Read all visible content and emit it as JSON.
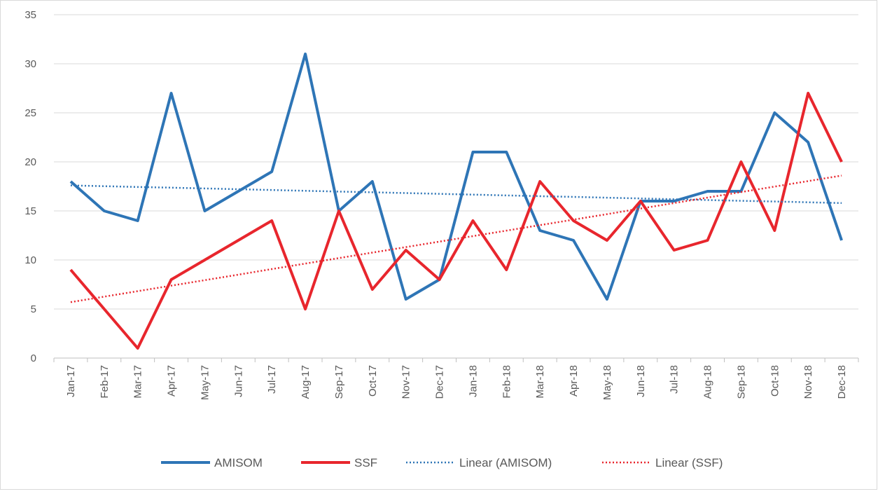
{
  "chart_data": {
    "type": "line",
    "categories": [
      "Jan-17",
      "Feb-17",
      "Mar-17",
      "Apr-17",
      "May-17",
      "Jun-17",
      "Jul-17",
      "Aug-17",
      "Sep-17",
      "Oct-17",
      "Nov-17",
      "Dec-17",
      "Jan-18",
      "Feb-18",
      "Mar-18",
      "Apr-18",
      "May-18",
      "Jun-18",
      "Jul-18",
      "Aug-18",
      "Sep-18",
      "Oct-18",
      "Nov-18",
      "Dec-18"
    ],
    "series": [
      {
        "name": "AMISOM",
        "color": "#2e75b6",
        "style": "solid",
        "values": [
          18,
          15,
          14,
          27,
          15,
          17,
          19,
          31,
          15,
          18,
          6,
          8,
          21,
          21,
          13,
          12,
          6,
          16,
          16,
          17,
          17,
          25,
          22,
          12
        ]
      },
      {
        "name": "SSF",
        "color": "#e8262d",
        "style": "solid",
        "values": [
          9,
          5,
          1,
          8,
          10,
          12,
          14,
          5,
          15,
          7,
          11,
          8,
          14,
          9,
          18,
          14,
          12,
          16,
          11,
          12,
          20,
          13,
          27,
          20
        ]
      },
      {
        "name": "Linear (AMISOM)",
        "color": "#2e75b6",
        "style": "dotted",
        "values": [
          17.6,
          17.52,
          17.44,
          17.37,
          17.29,
          17.21,
          17.13,
          17.05,
          16.97,
          16.9,
          16.82,
          16.74,
          16.66,
          16.58,
          16.5,
          16.43,
          16.35,
          16.27,
          16.19,
          16.11,
          16.03,
          15.96,
          15.88,
          15.8
        ]
      },
      {
        "name": "Linear (SSF)",
        "color": "#e8262d",
        "style": "dotted",
        "values": [
          5.7,
          6.26,
          6.82,
          7.38,
          7.94,
          8.5,
          9.07,
          9.63,
          10.19,
          10.75,
          11.31,
          11.87,
          12.43,
          12.99,
          13.55,
          14.11,
          14.67,
          15.24,
          15.8,
          16.36,
          16.92,
          17.48,
          18.04,
          18.6
        ]
      }
    ],
    "ylim": [
      0,
      35
    ],
    "yticks": [
      0,
      5,
      10,
      15,
      20,
      25,
      30,
      35
    ],
    "grid": true,
    "legend": "bottom"
  }
}
